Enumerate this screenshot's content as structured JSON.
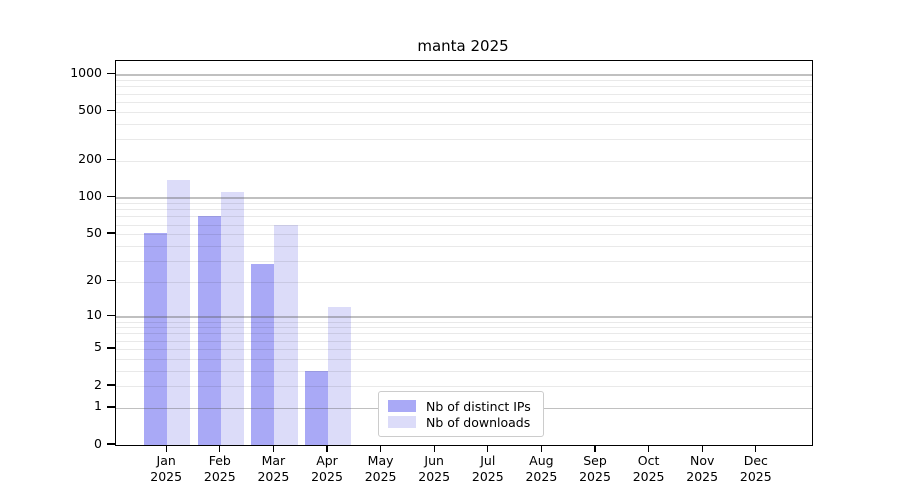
{
  "chart_data": {
    "type": "bar",
    "title": "manta 2025",
    "y_scale": "log10(1+y)",
    "grid": "horizontal; major gridlines at 1,10,100,1000; faint minor gridlines at 2-9 per decade",
    "legend_position": "inside plot, lower center",
    "yticks": [
      0,
      1,
      2,
      5,
      10,
      20,
      50,
      100,
      200,
      500,
      1000
    ],
    "ylim": [
      0,
      1300
    ],
    "year": "2025",
    "categories": [
      "Jan",
      "Feb",
      "Mar",
      "Apr",
      "May",
      "Jun",
      "Jul",
      "Aug",
      "Sep",
      "Oct",
      "Nov",
      "Dec"
    ],
    "series": [
      {
        "name": "Nb of distinct IPs",
        "color": "#a9a9f6",
        "values": [
          51,
          70,
          28,
          3,
          null,
          null,
          null,
          null,
          null,
          null,
          null,
          null
        ]
      },
      {
        "name": "Nb of downloads",
        "color": "#dcdcf9",
        "values": [
          140,
          111,
          60,
          12,
          null,
          null,
          null,
          null,
          null,
          null,
          null,
          null
        ]
      }
    ]
  },
  "colors": {
    "background": "#ffffff",
    "axis": "#000000",
    "major_grid": "#c9c9c9",
    "minor_grid": "#ececec",
    "legend_border": "#cccccc"
  }
}
